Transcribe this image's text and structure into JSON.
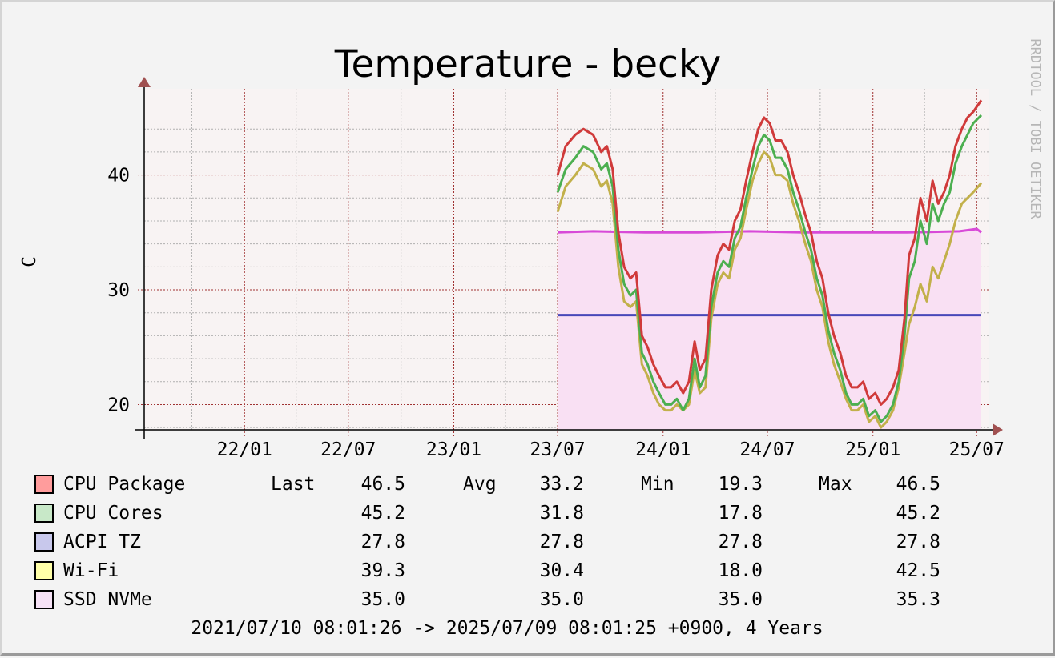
{
  "watermark": "RRDTOOL / TOBI OETIKER",
  "colors": {
    "background": "#f3f3f3",
    "plot_bg": "#f8f3f3",
    "grid_major": "#a03232",
    "grid_minor": "#b0b0b0",
    "axis": "#000000",
    "arrow": "#a05050"
  },
  "chart_data": {
    "type": "line",
    "title": "Temperature - becky",
    "ylabel": "C",
    "xlabel": "",
    "x_ticks": [
      "22/01",
      "22/07",
      "23/01",
      "23/07",
      "24/01",
      "24/07",
      "25/01",
      "25/07"
    ],
    "y_ticks": [
      20,
      30,
      40
    ],
    "ylim": [
      17.8,
      47.5
    ],
    "xlim": [
      "2021/07/10",
      "2025/07/09"
    ],
    "grid": true,
    "legend_position": "bottom",
    "series": [
      {
        "name": "CPU Package",
        "color": "#d03a3a",
        "swatch": "#ff9c9c",
        "stats": {
          "last": "46.5",
          "avg": "33.2",
          "min": "19.3",
          "max": "46.5"
        },
        "points": [
          [
            "2023/07/01",
            40.0
          ],
          [
            "2023/07/15",
            42.5
          ],
          [
            "2023/08/01",
            43.5
          ],
          [
            "2023/08/15",
            44.0
          ],
          [
            "2023/09/01",
            43.5
          ],
          [
            "2023/09/15",
            42.0
          ],
          [
            "2023/09/25",
            42.5
          ],
          [
            "2023/10/05",
            40.5
          ],
          [
            "2023/10/15",
            35.0
          ],
          [
            "2023/10/25",
            32.0
          ],
          [
            "2023/11/05",
            31.0
          ],
          [
            "2023/11/15",
            31.5
          ],
          [
            "2023/11/25",
            26.0
          ],
          [
            "2023/12/05",
            25.0
          ],
          [
            "2023/12/15",
            23.5
          ],
          [
            "2023/12/25",
            22.5
          ],
          [
            "2024/01/05",
            21.5
          ],
          [
            "2024/01/15",
            21.5
          ],
          [
            "2024/01/25",
            22.0
          ],
          [
            "2024/02/05",
            21.0
          ],
          [
            "2024/02/15",
            22.0
          ],
          [
            "2024/02/25",
            25.5
          ],
          [
            "2024/03/05",
            23.0
          ],
          [
            "2024/03/15",
            24.0
          ],
          [
            "2024/03/25",
            30.0
          ],
          [
            "2024/04/05",
            33.0
          ],
          [
            "2024/04/15",
            34.0
          ],
          [
            "2024/04/25",
            33.5
          ],
          [
            "2024/05/05",
            36.0
          ],
          [
            "2024/05/15",
            37.0
          ],
          [
            "2024/05/25",
            39.5
          ],
          [
            "2024/06/05",
            42.0
          ],
          [
            "2024/06/15",
            44.0
          ],
          [
            "2024/06/25",
            45.0
          ],
          [
            "2024/07/05",
            44.5
          ],
          [
            "2024/07/15",
            43.0
          ],
          [
            "2024/07/25",
            43.0
          ],
          [
            "2024/08/05",
            42.0
          ],
          [
            "2024/08/15",
            40.0
          ],
          [
            "2024/08/25",
            38.5
          ],
          [
            "2024/09/05",
            36.5
          ],
          [
            "2024/09/15",
            35.0
          ],
          [
            "2024/09/25",
            32.5
          ],
          [
            "2024/10/05",
            31.0
          ],
          [
            "2024/10/15",
            28.0
          ],
          [
            "2024/10/25",
            26.0
          ],
          [
            "2024/11/05",
            24.5
          ],
          [
            "2024/11/15",
            22.5
          ],
          [
            "2024/11/25",
            21.5
          ],
          [
            "2024/12/05",
            21.5
          ],
          [
            "2024/12/15",
            22.0
          ],
          [
            "2024/12/25",
            20.5
          ],
          [
            "2025/01/05",
            21.0
          ],
          [
            "2025/01/15",
            20.0
          ],
          [
            "2025/01/25",
            20.5
          ],
          [
            "2025/02/05",
            21.5
          ],
          [
            "2025/02/15",
            23.0
          ],
          [
            "2025/02/25",
            27.5
          ],
          [
            "2025/03/05",
            33.0
          ],
          [
            "2025/03/15",
            34.5
          ],
          [
            "2025/03/25",
            38.0
          ],
          [
            "2025/04/05",
            36.0
          ],
          [
            "2025/04/15",
            39.5
          ],
          [
            "2025/04/25",
            37.5
          ],
          [
            "2025/05/05",
            38.5
          ],
          [
            "2025/05/15",
            40.0
          ],
          [
            "2025/05/25",
            42.5
          ],
          [
            "2025/06/05",
            44.0
          ],
          [
            "2025/06/15",
            45.0
          ],
          [
            "2025/06/25",
            45.5
          ],
          [
            "2025/07/09",
            46.5
          ]
        ]
      },
      {
        "name": "CPU Cores",
        "color": "#4caf50",
        "swatch": "#c8e8c8",
        "stats": {
          "last": "45.2",
          "avg": "31.8",
          "min": "17.8",
          "max": "45.2"
        },
        "points": [
          [
            "2023/07/01",
            38.5
          ],
          [
            "2023/07/15",
            40.5
          ],
          [
            "2023/08/01",
            41.5
          ],
          [
            "2023/08/15",
            42.5
          ],
          [
            "2023/09/01",
            42.0
          ],
          [
            "2023/09/15",
            40.5
          ],
          [
            "2023/09/25",
            41.0
          ],
          [
            "2023/10/05",
            39.0
          ],
          [
            "2023/10/15",
            33.5
          ],
          [
            "2023/10/25",
            30.5
          ],
          [
            "2023/11/05",
            29.5
          ],
          [
            "2023/11/15",
            30.0
          ],
          [
            "2023/11/25",
            24.5
          ],
          [
            "2023/12/05",
            23.5
          ],
          [
            "2023/12/15",
            22.0
          ],
          [
            "2023/12/25",
            21.0
          ],
          [
            "2024/01/05",
            20.0
          ],
          [
            "2024/01/15",
            20.0
          ],
          [
            "2024/01/25",
            20.5
          ],
          [
            "2024/02/05",
            19.5
          ],
          [
            "2024/02/15",
            20.5
          ],
          [
            "2024/02/25",
            24.0
          ],
          [
            "2024/03/05",
            21.5
          ],
          [
            "2024/03/15",
            22.5
          ],
          [
            "2024/03/25",
            28.5
          ],
          [
            "2024/04/05",
            31.5
          ],
          [
            "2024/04/15",
            32.5
          ],
          [
            "2024/04/25",
            32.0
          ],
          [
            "2024/05/05",
            34.5
          ],
          [
            "2024/05/15",
            35.5
          ],
          [
            "2024/05/25",
            38.0
          ],
          [
            "2024/06/05",
            40.5
          ],
          [
            "2024/06/15",
            42.5
          ],
          [
            "2024/06/25",
            43.5
          ],
          [
            "2024/07/05",
            43.0
          ],
          [
            "2024/07/15",
            41.5
          ],
          [
            "2024/07/25",
            41.5
          ],
          [
            "2024/08/05",
            40.5
          ],
          [
            "2024/08/15",
            38.5
          ],
          [
            "2024/08/25",
            37.0
          ],
          [
            "2024/09/05",
            35.0
          ],
          [
            "2024/09/15",
            33.5
          ],
          [
            "2024/09/25",
            31.0
          ],
          [
            "2024/10/05",
            29.5
          ],
          [
            "2024/10/15",
            26.5
          ],
          [
            "2024/10/25",
            24.5
          ],
          [
            "2024/11/05",
            23.0
          ],
          [
            "2024/11/15",
            21.0
          ],
          [
            "2024/11/25",
            20.0
          ],
          [
            "2024/12/05",
            20.0
          ],
          [
            "2024/12/15",
            20.5
          ],
          [
            "2024/12/25",
            19.0
          ],
          [
            "2025/01/05",
            19.5
          ],
          [
            "2025/01/15",
            18.5
          ],
          [
            "2025/01/25",
            19.0
          ],
          [
            "2025/02/05",
            20.0
          ],
          [
            "2025/02/15",
            22.0
          ],
          [
            "2025/02/25",
            26.0
          ],
          [
            "2025/03/05",
            31.0
          ],
          [
            "2025/03/15",
            32.5
          ],
          [
            "2025/03/25",
            36.0
          ],
          [
            "2025/04/05",
            34.0
          ],
          [
            "2025/04/15",
            37.5
          ],
          [
            "2025/04/25",
            36.0
          ],
          [
            "2025/05/05",
            37.5
          ],
          [
            "2025/05/15",
            38.5
          ],
          [
            "2025/05/25",
            41.0
          ],
          [
            "2025/06/05",
            42.5
          ],
          [
            "2025/06/15",
            43.5
          ],
          [
            "2025/06/25",
            44.5
          ],
          [
            "2025/07/09",
            45.2
          ]
        ]
      },
      {
        "name": "ACPI TZ",
        "color": "#4848b8",
        "swatch": "#c8c8ec",
        "stats": {
          "last": "27.8",
          "avg": "27.8",
          "min": "27.8",
          "max": "27.8"
        },
        "points": [
          [
            "2023/07/01",
            27.8
          ],
          [
            "2025/07/09",
            27.8
          ]
        ]
      },
      {
        "name": "Wi-Fi",
        "color": "#c2b04a",
        "swatch": "#ffffa8",
        "stats": {
          "last": "39.3",
          "avg": "30.4",
          "min": "18.0",
          "max": "42.5"
        },
        "points": [
          [
            "2023/07/01",
            36.8
          ],
          [
            "2023/07/15",
            39.0
          ],
          [
            "2023/08/01",
            40.0
          ],
          [
            "2023/08/15",
            41.0
          ],
          [
            "2023/09/01",
            40.5
          ],
          [
            "2023/09/15",
            39.0
          ],
          [
            "2023/09/25",
            39.5
          ],
          [
            "2023/10/05",
            37.5
          ],
          [
            "2023/10/15",
            32.0
          ],
          [
            "2023/10/25",
            29.0
          ],
          [
            "2023/11/05",
            28.5
          ],
          [
            "2023/11/15",
            29.0
          ],
          [
            "2023/11/25",
            23.5
          ],
          [
            "2023/12/05",
            22.5
          ],
          [
            "2023/12/15",
            21.0
          ],
          [
            "2023/12/25",
            20.0
          ],
          [
            "2024/01/05",
            19.5
          ],
          [
            "2024/01/15",
            19.5
          ],
          [
            "2024/01/25",
            20.0
          ],
          [
            "2024/02/05",
            19.5
          ],
          [
            "2024/02/15",
            20.0
          ],
          [
            "2024/02/25",
            23.0
          ],
          [
            "2024/03/05",
            21.0
          ],
          [
            "2024/03/15",
            21.5
          ],
          [
            "2024/03/25",
            27.5
          ],
          [
            "2024/04/05",
            30.5
          ],
          [
            "2024/04/15",
            31.5
          ],
          [
            "2024/04/25",
            31.0
          ],
          [
            "2024/05/05",
            33.5
          ],
          [
            "2024/05/15",
            34.5
          ],
          [
            "2024/05/25",
            37.0
          ],
          [
            "2024/06/05",
            39.5
          ],
          [
            "2024/06/15",
            41.0
          ],
          [
            "2024/06/25",
            42.0
          ],
          [
            "2024/07/05",
            41.5
          ],
          [
            "2024/07/15",
            40.0
          ],
          [
            "2024/07/25",
            40.0
          ],
          [
            "2024/08/05",
            39.5
          ],
          [
            "2024/08/15",
            37.5
          ],
          [
            "2024/08/25",
            36.0
          ],
          [
            "2024/09/05",
            34.0
          ],
          [
            "2024/09/15",
            32.5
          ],
          [
            "2024/09/25",
            30.0
          ],
          [
            "2024/10/05",
            28.5
          ],
          [
            "2024/10/15",
            25.5
          ],
          [
            "2024/10/25",
            23.5
          ],
          [
            "2024/11/05",
            22.0
          ],
          [
            "2024/11/15",
            20.5
          ],
          [
            "2024/11/25",
            19.5
          ],
          [
            "2024/12/05",
            19.5
          ],
          [
            "2024/12/15",
            20.0
          ],
          [
            "2024/12/25",
            18.5
          ],
          [
            "2025/01/05",
            19.0
          ],
          [
            "2025/01/15",
            18.0
          ],
          [
            "2025/01/25",
            18.5
          ],
          [
            "2025/02/05",
            19.5
          ],
          [
            "2025/02/15",
            21.5
          ],
          [
            "2025/02/25",
            24.5
          ],
          [
            "2025/03/05",
            27.0
          ],
          [
            "2025/03/15",
            28.5
          ],
          [
            "2025/03/25",
            30.5
          ],
          [
            "2025/04/05",
            29.0
          ],
          [
            "2025/04/15",
            32.0
          ],
          [
            "2025/04/25",
            31.0
          ],
          [
            "2025/05/05",
            32.5
          ],
          [
            "2025/05/15",
            34.0
          ],
          [
            "2025/05/25",
            36.0
          ],
          [
            "2025/06/05",
            37.5
          ],
          [
            "2025/06/15",
            38.0
          ],
          [
            "2025/06/25",
            38.5
          ],
          [
            "2025/07/09",
            39.3
          ]
        ]
      },
      {
        "name": "SSD NVMe",
        "color": "#d84ad8",
        "swatch": "#f6e2f6",
        "fill": "#f9e0f3",
        "stats": {
          "last": "35.0",
          "avg": "35.0",
          "min": "35.0",
          "max": "35.3"
        },
        "points": [
          [
            "2023/07/01",
            35.0
          ],
          [
            "2023/09/01",
            35.1
          ],
          [
            "2023/12/01",
            35.0
          ],
          [
            "2024/03/01",
            35.0
          ],
          [
            "2024/06/01",
            35.1
          ],
          [
            "2024/09/01",
            35.0
          ],
          [
            "2024/12/01",
            35.0
          ],
          [
            "2025/03/01",
            35.0
          ],
          [
            "2025/06/01",
            35.1
          ],
          [
            "2025/07/01",
            35.3
          ],
          [
            "2025/07/09",
            35.0
          ]
        ]
      }
    ],
    "legend_headers": {
      "last": "Last",
      "avg": "Avg",
      "min": "Min",
      "max": "Max"
    },
    "footer": "2021/07/10 08:01:26 -> 2025/07/09 08:01:25 +0900, 4 Years"
  }
}
